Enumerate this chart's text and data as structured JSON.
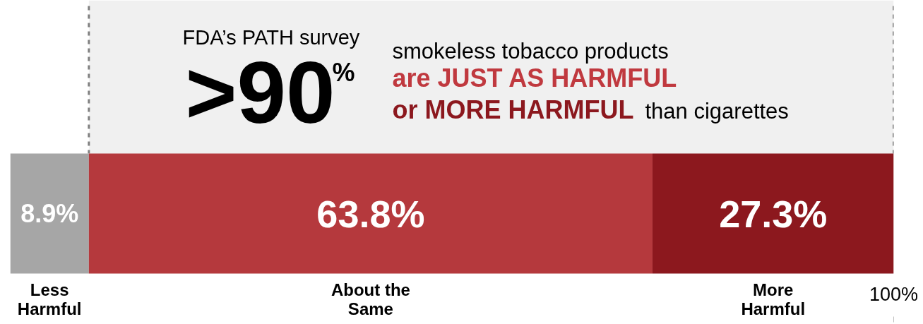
{
  "chart_data": {
    "type": "bar",
    "orientation": "horizontal",
    "stacked": true,
    "categories": [
      null
    ],
    "series": [
      {
        "name": "Less\nHarmful",
        "color": "#a6a6a6",
        "values": [
          8.9
        ],
        "value_labels": [
          "8.9%"
        ]
      },
      {
        "name": "About the\nSame",
        "color": "#b5393d",
        "values": [
          63.8
        ],
        "value_labels": [
          "63.8%"
        ]
      },
      {
        "name": "More\nHarmful",
        "color": "#8c181e",
        "values": [
          27.3
        ],
        "value_labels": [
          "27.3%"
        ]
      }
    ],
    "xlim": [
      0,
      100
    ],
    "xticks": [
      {
        "value": 100,
        "label": "100%"
      }
    ],
    "tick_labels": "x",
    "grid": false,
    "bands": [
      {
        "axis": "x",
        "from": 8.9,
        "to": 100,
        "color": "#f0f0f0"
      }
    ],
    "annotations": [
      "FDA’s PATH survey",
      ">90%",
      "smokeless tobacco products",
      "are JUST AS HARMFUL",
      "or MORE HARMFUL",
      "than cigarettes"
    ]
  }
}
